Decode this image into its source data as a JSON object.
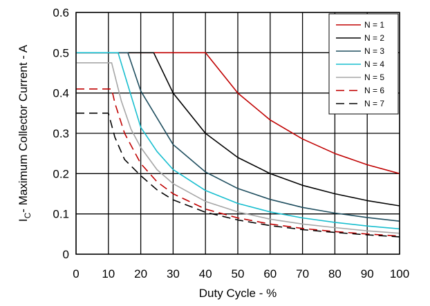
{
  "chart_data": {
    "type": "line",
    "title": "",
    "xlabel": "Duty Cycle - %",
    "ylabel": {
      "main": "I",
      "sub": "C",
      "rest": "- Maximum Collector Current - A"
    },
    "xlim": [
      0,
      100
    ],
    "ylim": [
      0,
      0.6
    ],
    "x_ticks": [
      0,
      10,
      20,
      30,
      40,
      50,
      60,
      70,
      80,
      90,
      100
    ],
    "x_tick_labels": [
      "0",
      "10",
      "20",
      "30",
      "40",
      "50",
      "60",
      "70",
      "80",
      "90",
      "100"
    ],
    "y_ticks": [
      0,
      0.1,
      0.2,
      0.3,
      0.4,
      0.5,
      0.6
    ],
    "y_tick_labels": [
      "0",
      "0.1",
      "0.2",
      "0.3",
      "0.4",
      "0.5",
      "0.6"
    ],
    "grid": true,
    "legend_position": "top-right",
    "series": [
      {
        "name": "N = 1",
        "color": "#c00000",
        "dash": "solid",
        "x": [
          0,
          40,
          50,
          60,
          70,
          80,
          90,
          100
        ],
        "y": [
          0.5,
          0.5,
          0.4,
          0.333,
          0.286,
          0.25,
          0.222,
          0.2
        ]
      },
      {
        "name": "N = 2",
        "color": "#000000",
        "dash": "solid",
        "x": [
          0,
          24,
          30,
          40,
          50,
          60,
          70,
          80,
          90,
          100
        ],
        "y": [
          0.5,
          0.5,
          0.4,
          0.3,
          0.24,
          0.2,
          0.171,
          0.15,
          0.133,
          0.12
        ]
      },
      {
        "name": "N = 3",
        "color": "#1f4e5f",
        "dash": "solid",
        "x": [
          0,
          16,
          20,
          30,
          40,
          50,
          60,
          70,
          80,
          90,
          100
        ],
        "y": [
          0.5,
          0.5,
          0.405,
          0.272,
          0.204,
          0.163,
          0.136,
          0.116,
          0.102,
          0.091,
          0.082
        ]
      },
      {
        "name": "N = 4",
        "color": "#17becf",
        "dash": "solid",
        "x": [
          0,
          13,
          16,
          20,
          25,
          30,
          40,
          50,
          60,
          70,
          80,
          90,
          100
        ],
        "y": [
          0.5,
          0.5,
          0.42,
          0.315,
          0.255,
          0.21,
          0.158,
          0.126,
          0.105,
          0.09,
          0.079,
          0.07,
          0.063
        ]
      },
      {
        "name": "N = 5",
        "color": "#a6a6a6",
        "dash": "solid",
        "x": [
          0,
          11,
          14,
          17,
          20,
          25,
          30,
          40,
          50,
          60,
          70,
          80,
          90,
          100
        ],
        "y": [
          0.475,
          0.475,
          0.38,
          0.31,
          0.265,
          0.21,
          0.175,
          0.131,
          0.105,
          0.087,
          0.075,
          0.066,
          0.058,
          0.052
        ]
      },
      {
        "name": "N = 6",
        "color": "#c00000",
        "dash": "dash",
        "x": [
          0,
          11,
          12,
          15,
          20,
          25,
          30,
          40,
          50,
          60,
          70,
          80,
          90,
          100
        ],
        "y": [
          0.41,
          0.41,
          0.375,
          0.3,
          0.225,
          0.18,
          0.15,
          0.112,
          0.09,
          0.075,
          0.064,
          0.056,
          0.05,
          0.045
        ]
      },
      {
        "name": "N = 7",
        "color": "#000000",
        "dash": "dash",
        "x": [
          0,
          10,
          12,
          15,
          20,
          25,
          30,
          40,
          50,
          60,
          70,
          80,
          90,
          100
        ],
        "y": [
          0.35,
          0.35,
          0.29,
          0.235,
          0.195,
          0.16,
          0.135,
          0.104,
          0.085,
          0.071,
          0.061,
          0.054,
          0.048,
          0.043
        ]
      }
    ]
  }
}
